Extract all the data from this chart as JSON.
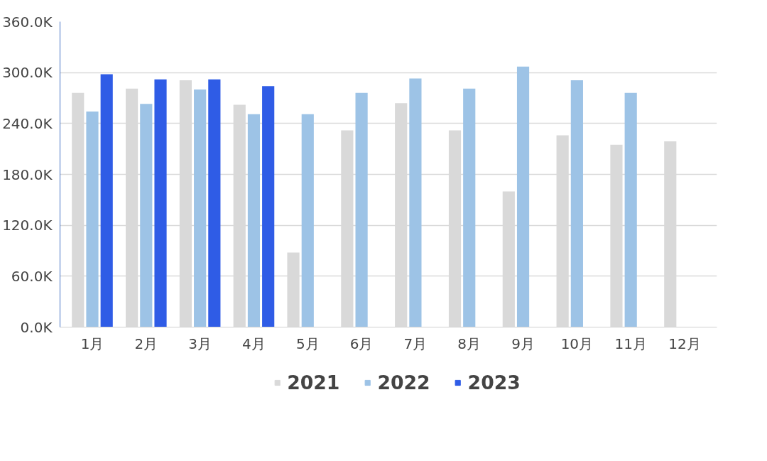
{
  "chart_data": {
    "type": "bar",
    "categories": [
      "1月",
      "2月",
      "3月",
      "4月",
      "5月",
      "6月",
      "7月",
      "8月",
      "9月",
      "10月",
      "11月",
      "12月"
    ],
    "series": [
      {
        "name": "2021",
        "color": "#d9d9d9",
        "values": [
          276,
          281,
          291,
          262,
          88,
          232,
          264,
          232,
          160,
          226,
          215,
          219
        ]
      },
      {
        "name": "2022",
        "color": "#9dc3e6",
        "values": [
          254,
          263,
          280,
          251,
          251,
          276,
          293,
          281,
          307,
          291,
          276,
          null
        ]
      },
      {
        "name": "2023",
        "color": "#2f5ce6",
        "values": [
          298,
          292,
          292,
          284,
          null,
          null,
          null,
          null,
          null,
          null,
          null,
          null
        ]
      }
    ],
    "ylim": [
      0,
      360
    ],
    "yticks": [
      {
        "value": 0,
        "label": "0.0K"
      },
      {
        "value": 60,
        "label": "60.0K"
      },
      {
        "value": 120,
        "label": "120.0K"
      },
      {
        "value": 180,
        "label": "180.0K"
      },
      {
        "value": 240,
        "label": "240.0K"
      },
      {
        "value": 300,
        "label": "300.0K"
      },
      {
        "value": 360,
        "label": "360.0K"
      }
    ],
    "grid": "y",
    "legend": "bottom"
  }
}
